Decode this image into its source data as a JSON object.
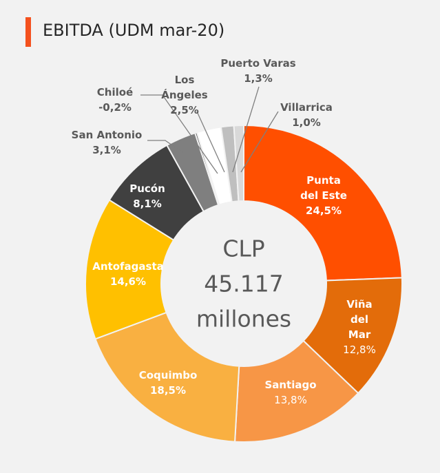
{
  "chart_data": {
    "type": "donut",
    "title": "EBITDA (UDM mar-20)",
    "center_text": [
      "CLP",
      "45.117",
      "millones"
    ],
    "categories": [
      "Punta del Este",
      "Viña del Mar",
      "Santiago",
      "Coquimbo",
      "Antofagasta",
      "Pucón",
      "San Antonio",
      "Chiloé",
      "Los Ángeles",
      "Puerto Varas",
      "Villarrica"
    ],
    "values": [
      24.5,
      12.8,
      13.8,
      18.5,
      14.6,
      8.1,
      3.1,
      -0.2,
      2.5,
      1.3,
      1.0
    ],
    "value_labels": [
      "24,5%",
      "12,8%",
      "13,8%",
      "18,5%",
      "14,6%",
      "8,1%",
      "3,1%",
      "-0,2%",
      "2,5%",
      "1,3%",
      "1,0%"
    ],
    "colors": [
      "#ff4f00",
      "#e36c0a",
      "#f79646",
      "#f9b041",
      "#ffc000",
      "#404040",
      "#7f7f7f",
      "#595959",
      "#ffffff",
      "#bfbfbf",
      "#d9d9d9"
    ]
  }
}
